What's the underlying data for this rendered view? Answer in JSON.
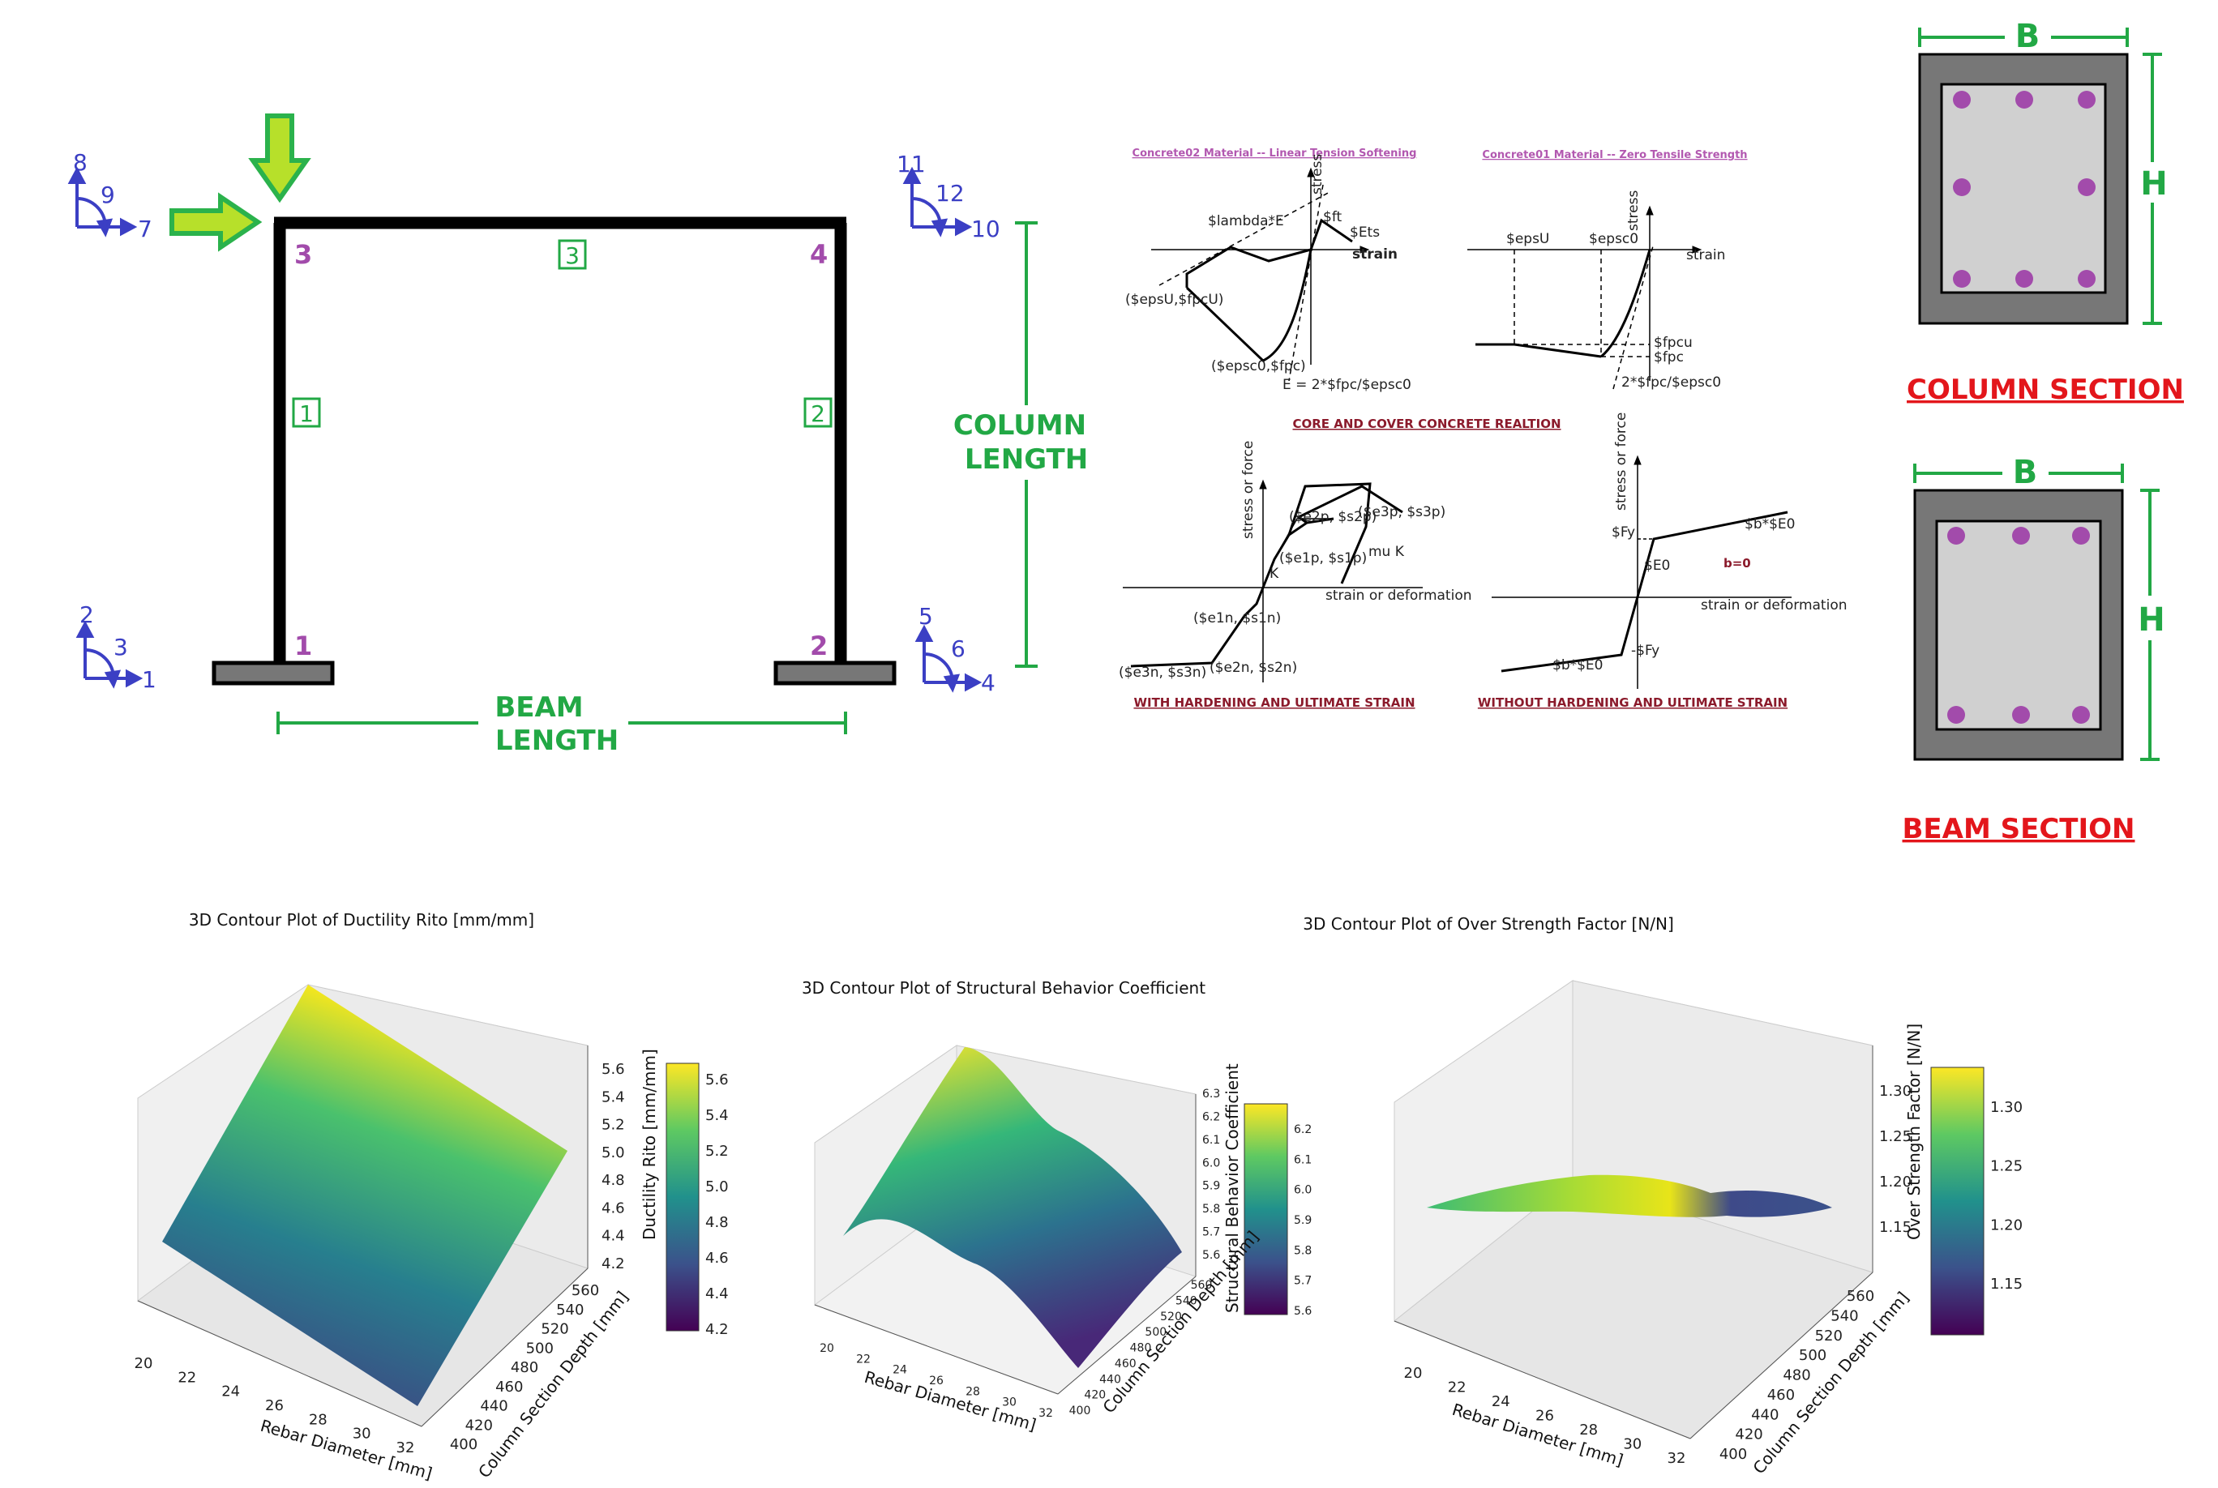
{
  "frame": {
    "nodes": [
      "1",
      "2",
      "3",
      "4"
    ],
    "elements": [
      "1",
      "2",
      "3"
    ],
    "dofs": [
      "1",
      "2",
      "3",
      "4",
      "5",
      "6",
      "7",
      "8",
      "9",
      "10",
      "11",
      "12"
    ],
    "beam_length_label": [
      "BEAM",
      "LENGTH"
    ],
    "column_length_label": [
      "COLUMN",
      "LENGTH"
    ]
  },
  "materials": {
    "concrete02_title": "Concrete02 Material -- Linear Tension Softening",
    "concrete01_title": "Concrete01 Material -- Zero Tensile Strength",
    "concrete_caption": "CORE AND COVER CONCRETE REALTION",
    "steel_hard_caption": "WITH HARDENING AND ULTIMATE STRAIN",
    "steel_nohard_caption": "WITHOUT HARDENING AND ULTIMATE STRAIN",
    "c02_labels": {
      "stress": "stress",
      "strain": "strain",
      "lambda": "$lambda*E",
      "ft": "$ft",
      "ets": "$Ets",
      "epsu": "($epsU,$fpcU)",
      "epsc0": "($epsc0,$fpc)",
      "ec": "E = 2*$fpc/$epsc0"
    },
    "c01_labels": {
      "stress": "stress",
      "strain": "strain",
      "epsu": "$epsU",
      "epsc0": "$epsc0",
      "fpcu": "$fpcu",
      "fpc": "$fpc",
      "slope": "2*$fpc/$epsc0"
    },
    "s_hard_labels": {
      "y": "stress or force",
      "x": "strain or deformation",
      "e2p": "($e2p, $s2p)",
      "e3p": "($e3p, $s3p)",
      "e1p": "($e1p, $s1p)",
      "mu": "mu  K",
      "ke": "K",
      "e1n": "($e1n, $s1n)",
      "e2n": "($e2n, $s2n)",
      "e3n": "($e3n, $s3n)"
    },
    "s_nohard_labels": {
      "y": "stress or force",
      "x": "strain or deformation",
      "fy": "$Fy",
      "bE0": "$b*$E0",
      "e0": "$E0",
      "b0": "b=0",
      "nfy": "-$Fy",
      "bE0n": "$b*$E0"
    }
  },
  "sections": {
    "column_title": "COLUMN SECTION",
    "beam_title": "BEAM SECTION",
    "b_label": "B",
    "h_label": "H"
  },
  "plots": [
    {
      "title": "3D Contour Plot of Ductility Rito  [mm/mm]",
      "xlabel": "Rebar Diameter [mm]",
      "ylabel": "Column Section Depth [mm]",
      "zlabel": "Ductility Rito  [mm/mm]",
      "x_ticks": [
        "20",
        "22",
        "24",
        "26",
        "28",
        "30",
        "32"
      ],
      "y_ticks": [
        "400",
        "420",
        "440",
        "460",
        "480",
        "500",
        "520",
        "540",
        "560"
      ],
      "z_ticks": [
        "4.2",
        "4.4",
        "4.6",
        "4.8",
        "5.0",
        "5.2",
        "5.4",
        "5.6"
      ],
      "cbar_ticks": [
        "4.2",
        "4.4",
        "4.6",
        "4.8",
        "5.0",
        "5.2",
        "5.4",
        "5.6"
      ]
    },
    {
      "title": "3D Contour Plot of Structural Behavior Coefficient",
      "xlabel": "Rebar Diameter [mm]",
      "ylabel": "Column Section Depth [mm]",
      "zlabel": "Structural Behavior Coefficient",
      "x_ticks": [
        "20",
        "22",
        "24",
        "26",
        "28",
        "30",
        "32"
      ],
      "y_ticks": [
        "400",
        "420",
        "440",
        "460",
        "480",
        "500",
        "520",
        "540",
        "560"
      ],
      "z_ticks": [
        "5.6",
        "5.7",
        "5.8",
        "5.9",
        "6.0",
        "6.1",
        "6.2",
        "6.3"
      ],
      "cbar_ticks": [
        "5.6",
        "5.7",
        "5.8",
        "5.9",
        "6.0",
        "6.1",
        "6.2"
      ]
    },
    {
      "title": "3D Contour Plot of Over Strength Factor [N/N]",
      "xlabel": "Rebar Diameter [mm]",
      "ylabel": "Column Section Depth [mm]",
      "zlabel": "Over Strength Factor [N/N]",
      "x_ticks": [
        "20",
        "22",
        "24",
        "26",
        "28",
        "30",
        "32"
      ],
      "y_ticks": [
        "400",
        "420",
        "440",
        "460",
        "480",
        "500",
        "520",
        "540",
        "560"
      ],
      "z_ticks": [
        "1.15",
        "1.20",
        "1.25",
        "1.30"
      ],
      "cbar_ticks": [
        "1.15",
        "1.20",
        "1.25",
        "1.30"
      ]
    }
  ]
}
